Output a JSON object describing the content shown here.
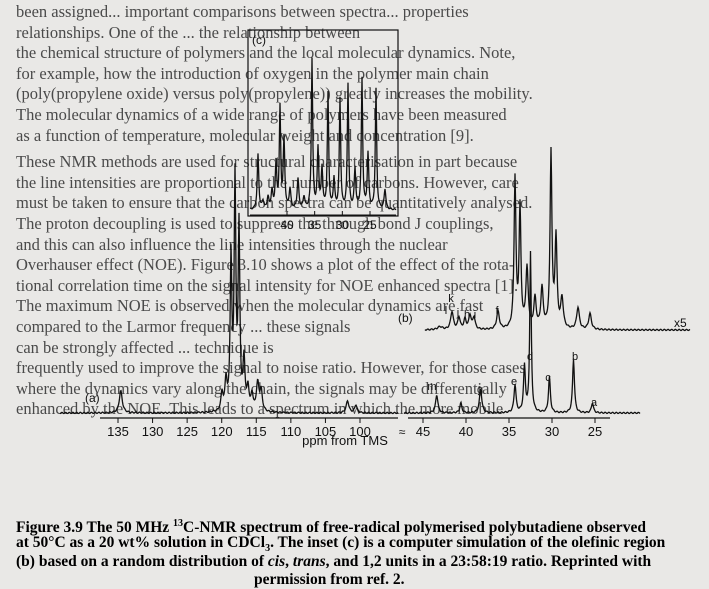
{
  "background_text": [
    "been assigned... important comparisons between spectra... properties",
    "relationships. One of the ... the relationship between",
    "the chemical structure of polymers and the local molecular dynamics. Note,",
    "for example, how the introduction of oxygen in the polymer main chain",
    "(poly(propylene oxide) versus poly(propylene)) greatly increases the mobility.",
    "The molecular dynamics of a wide range of polymers have been measured",
    "as a function of temperature, molecular weight and concentration [9].",
    "These NMR methods are used for structural characterisation in part because",
    "the line intensities are proportional to the number of carbons. However, care",
    "must be taken to ensure that the carbon spectra can be quantitatively analysed.",
    "The proton decoupling is used to suppress the through bond J couplings,",
    "and this can also influence the line intensities through the nuclear",
    "Overhauser effect (NOE). Figure 3.10 shows a plot of the effect of the rota-",
    "tional correlation time on the signal intensity for NOE enhanced spectra [1].",
    "The maximum NOE is observed when the molecular dynamics are fast",
    "compared to the Larmor frequency ... these signals",
    "can be strongly affected ... technique is",
    "frequently used to improve the signal to noise ratio. However, for those cases",
    "where the dynamics vary along the chain, the signals may be differentially",
    "enhanced by the NOE. This leads to a spectrum in which the more mobile"
  ],
  "chart_data": {
    "type": "line",
    "title": "",
    "xlabel": "ppm from TMS",
    "ylabel": "",
    "x_ticks_left": [
      135,
      130,
      125,
      120,
      115,
      110,
      105,
      100
    ],
    "x_ticks_right": [
      45,
      40,
      35,
      30,
      25
    ],
    "inset_x_ticks": [
      40,
      35,
      30,
      25
    ],
    "panel_labels": [
      "(a)",
      "(b)",
      "(c)"
    ],
    "scale_label": "x5",
    "peak_labels": [
      "k",
      "l",
      "j",
      "h",
      "i",
      "f",
      "g",
      "m",
      "d",
      "e",
      "c",
      "b",
      "a"
    ],
    "grid": false,
    "legend": "none",
    "series": [
      {
        "name": "(a)",
        "olefinic_peaks_ppm": [
          134.6,
          129.6,
          128.6,
          127.6,
          114.8,
          114.4,
          101.8,
          100.6,
          143.0,
          142.6,
          131.6,
          131.2,
          130.4,
          130.0
        ],
        "aliphatic_peaks_ppm": [
          43.4,
          38.3,
          34.1,
          33.0,
          30.3,
          27.5,
          25.3
        ]
      },
      {
        "name": "(b)",
        "aliphatic_peaks_ppm": [
          43.4,
          41.0,
          40.6,
          40.2,
          39.4,
          38.6,
          38.3,
          36.0,
          34.1,
          33.0,
          30.3,
          27.5,
          25.3
        ]
      },
      {
        "name": "(c)",
        "peaks_ppm": [
          42.8,
          42.2,
          41.6,
          40.6,
          40.2,
          37.8,
          37.6,
          35.6,
          34.9,
          33.8,
          32.9,
          30.2,
          29.8,
          27.6,
          24.9
        ]
      }
    ]
  },
  "caption": {
    "label": "Figure 3.9",
    "text_before_13": "The 50 MHz ",
    "superscript": "13",
    "text_after_13": "C-NMR spectrum of free-radical polymerised polybutadiene observed",
    "line2": "at 50°C as a 20 wt% solution in CDCl",
    "line2_sub": "3",
    "line2_tail": ". The inset (c) is a computer simulation of the olefinic region",
    "line3_a": "(b) based on a random distribution of ",
    "cis": "cis",
    "sep1": ", ",
    "trans": "trans",
    "line3_b": ", and 1,2 units in a 23:58:19 ratio. Reprinted with",
    "line4": "permission from ref. 2."
  }
}
